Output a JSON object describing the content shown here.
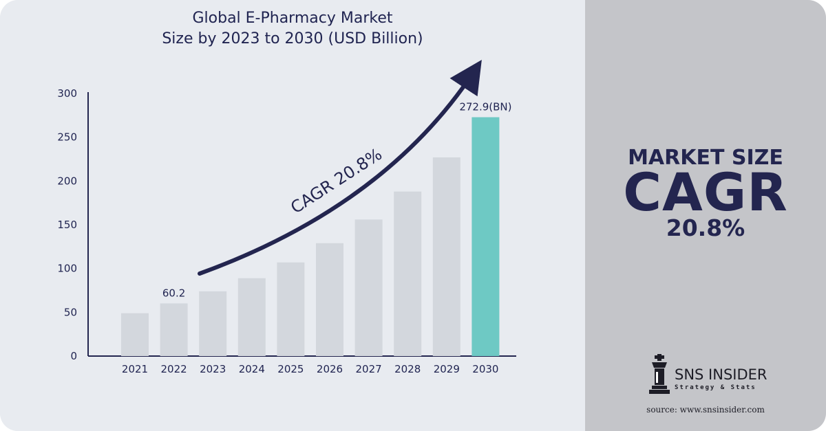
{
  "colors": {
    "background": "#e8ebf0",
    "right_panel": "#c4c5c9",
    "bar": "#d3d7dd",
    "bar_highlight": "#6ec9c4",
    "arrow": "#23254f",
    "axis": "#23254f",
    "text_dark": "#1f2350"
  },
  "right": {
    "market_size": "MARKET SIZE",
    "cagr": "CAGR",
    "cagr_value": "20.8%"
  },
  "logo": {
    "name": "SNS INSIDER",
    "tagline": "Strategy & Stats",
    "icon": "chess-king-icon"
  },
  "source": "source: www.snsinsider.com",
  "chart_data": {
    "type": "bar",
    "title_lines": [
      "Global E-Pharmacy Market",
      "Size by 2023 to 2030 (USD Billion)"
    ],
    "categories": [
      "2021",
      "2022",
      "2023",
      "2024",
      "2025",
      "2026",
      "2027",
      "2028",
      "2029",
      "2030"
    ],
    "values": [
      49,
      60.2,
      74,
      89,
      107,
      129,
      156,
      188,
      227,
      272.9
    ],
    "highlight_index": 9,
    "ylim": [
      0,
      300
    ],
    "yticks": [
      0,
      50,
      100,
      150,
      200,
      250,
      300
    ],
    "data_labels": [
      {
        "index": 1,
        "text": "60.2"
      },
      {
        "index": 9,
        "text": "272.9(BN)"
      }
    ],
    "annotation": "CAGR 20.8%",
    "grid": false,
    "legend": "none"
  }
}
